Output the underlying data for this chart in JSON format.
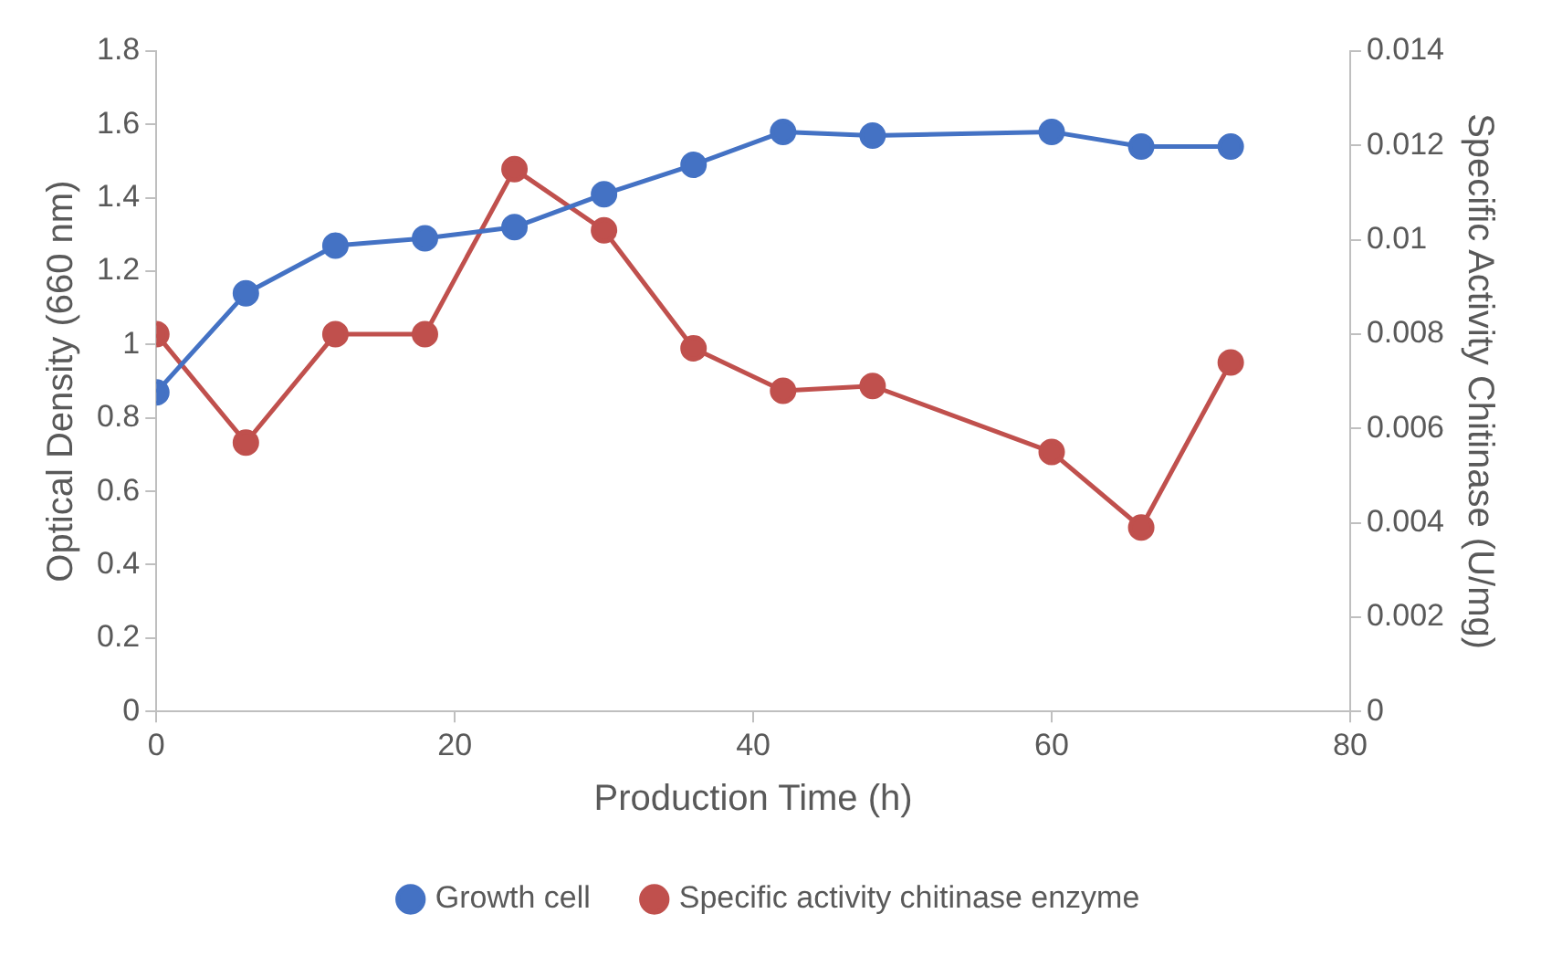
{
  "chart_data": {
    "type": "line",
    "xlabel": "Production Time (h)",
    "ylabel": "Optical Density (660 nm)",
    "y2label": "Specific Activity Chitinase (U/mg)",
    "x": [
      0,
      6,
      12,
      18,
      24,
      30,
      36,
      42,
      48,
      60,
      66,
      72
    ],
    "series": [
      {
        "name": "Growth cell",
        "color": "#4472c4",
        "values": [
          0.87,
          1.14,
          1.27,
          1.29,
          1.32,
          1.41,
          1.49,
          1.58,
          1.57,
          1.58,
          1.54,
          1.54
        ]
      },
      {
        "name": "Specific activity chitinase enzyme",
        "color": "#c0504d",
        "axis": "y2",
        "values": [
          0.008,
          0.0057,
          0.008,
          0.008,
          0.0115,
          0.0102,
          0.0077,
          0.0068,
          0.0069,
          0.0055,
          0.0039,
          0.0074
        ]
      }
    ],
    "xlim": [
      0,
      80
    ],
    "xticks": [
      0,
      20,
      40,
      60,
      80
    ],
    "ylim": [
      0,
      1.8
    ],
    "yticks": [
      0,
      0.2,
      0.4,
      0.6,
      0.8,
      1,
      1.2,
      1.4,
      1.6,
      1.8
    ],
    "y2lim": [
      0,
      0.014
    ],
    "y2ticks": [
      0,
      0.002,
      0.004,
      0.006,
      0.008,
      0.01,
      0.012,
      0.014
    ],
    "grid": false,
    "legend": "bottom",
    "marker": "circle",
    "line_style": "solid"
  }
}
